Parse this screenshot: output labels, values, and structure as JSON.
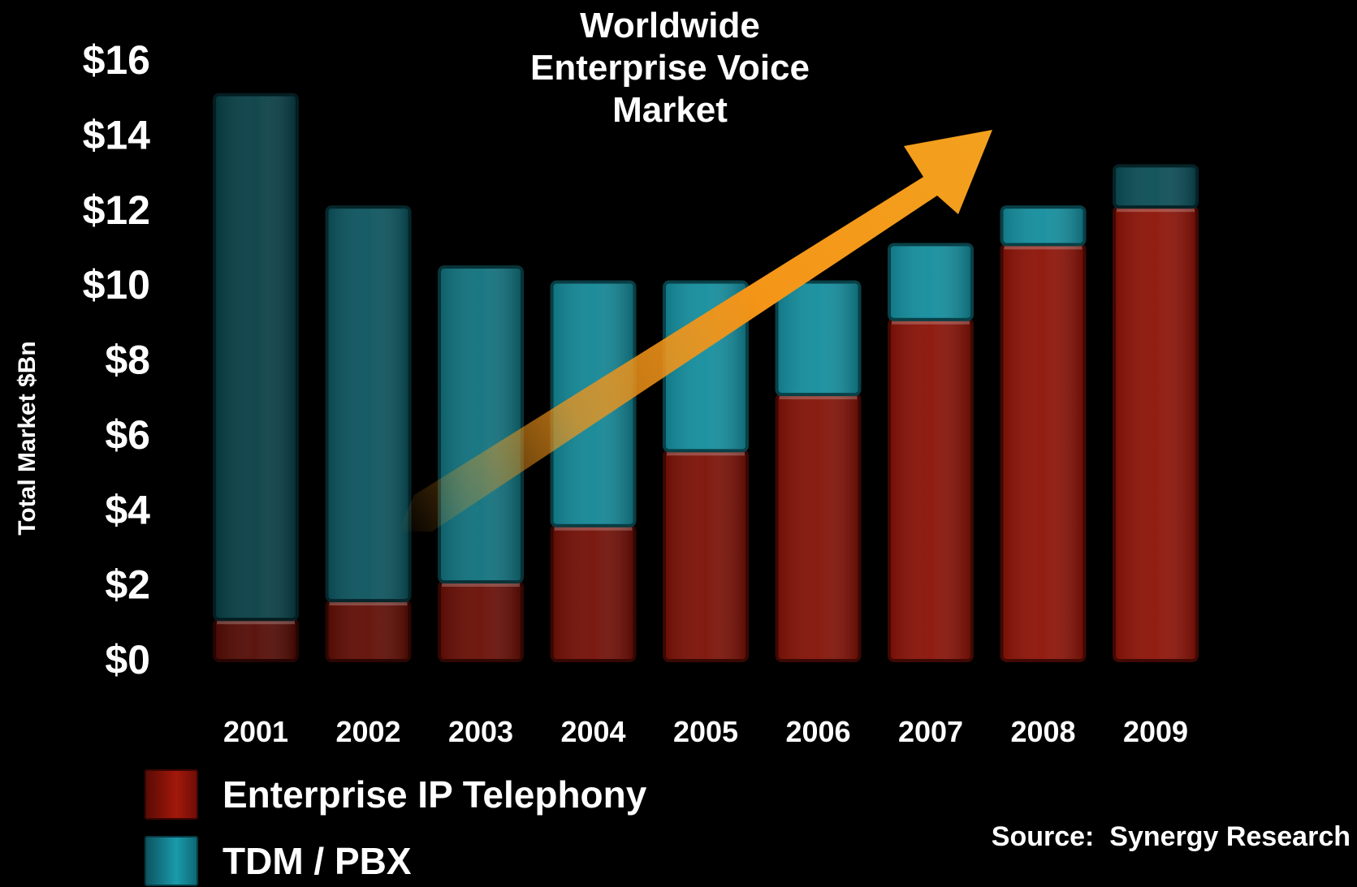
{
  "chart_data": {
    "type": "bar",
    "stacked": true,
    "title": [
      "Worldwide",
      "Enterprise Voice",
      "Market"
    ],
    "ylabel": "Total Market $Bn",
    "xlabel": "",
    "ylim": [
      0,
      16
    ],
    "yticks": [
      0,
      2,
      4,
      6,
      8,
      10,
      12,
      14,
      16
    ],
    "ytick_labels": [
      "$0",
      "$2",
      "$4",
      "$6",
      "$8",
      "$10",
      "$12",
      "$14",
      "$16"
    ],
    "categories": [
      "2001",
      "2002",
      "2003",
      "2004",
      "2005",
      "2006",
      "2007",
      "2008",
      "2009"
    ],
    "series": [
      {
        "name": "Enterprise IP Telephony",
        "color": "#8e1408",
        "values": [
          1.1,
          1.6,
          2.1,
          3.6,
          5.6,
          7.1,
          9.1,
          11.1,
          12.1
        ]
      },
      {
        "name": "TDM / PBX",
        "color": "#158e9e",
        "values": [
          14.0,
          10.5,
          8.4,
          6.5,
          4.5,
          3.0,
          2.0,
          1.0,
          1.1
        ]
      }
    ],
    "grid": false,
    "legend": "bottom-left",
    "annotation": "upward-trend-arrow"
  },
  "source": "Source:  Synergy Research"
}
